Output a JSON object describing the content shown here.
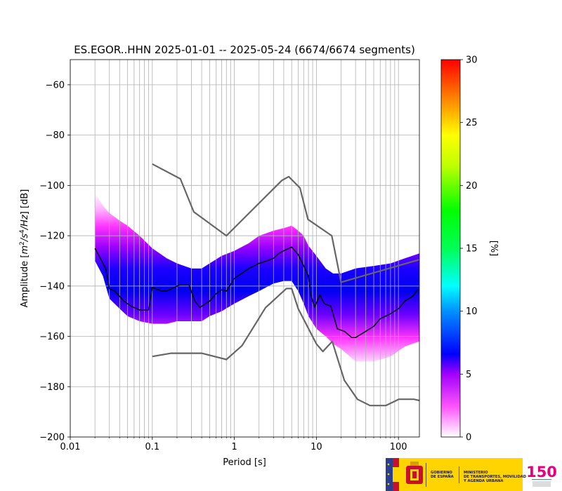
{
  "chart_data": {
    "type": "line",
    "title": "ES.EGOR..HHN   2025-01-01 -- 2025-05-24  (6674/6674 segments)",
    "xlabel": "Period [s]",
    "ylabel_parts": [
      "Amplitude [",
      "m",
      "2",
      "/",
      "s",
      "4",
      "/",
      "Hz",
      "] [dB]"
    ],
    "xscale": "log",
    "xlim": [
      0.01,
      180
    ],
    "ylim": [
      -200,
      -50
    ],
    "xticks": [
      0.01,
      0.1,
      1,
      10,
      100
    ],
    "xtick_labels": [
      "0.01",
      "0.1",
      "1",
      "10",
      "100"
    ],
    "yticks": [
      -200,
      -180,
      -160,
      -140,
      -120,
      -100,
      -80,
      -60
    ],
    "ytick_labels": [
      "−200",
      "−180",
      "−160",
      "−140",
      "−120",
      "−100",
      "−80",
      "−60"
    ],
    "grid": true,
    "colorbar": {
      "label": "[%]",
      "range": [
        0,
        30
      ],
      "ticks": [
        0,
        5,
        10,
        15,
        20,
        25,
        30
      ],
      "tick_labels": [
        "0",
        "5",
        "10",
        "15",
        "20",
        "25",
        "30"
      ],
      "colors": [
        "#ffffff",
        "#ff00ff",
        "#0000ff",
        "#00ffff",
        "#00ff00",
        "#ffff00",
        "#ff0000"
      ]
    },
    "series": [
      {
        "role": "noise-model-high",
        "color": "#666666",
        "points": [
          [
            0.1,
            -91.5
          ],
          [
            0.22,
            -97.4
          ],
          [
            0.32,
            -110.5
          ],
          [
            0.8,
            -120
          ],
          [
            3.8,
            -98
          ],
          [
            4.6,
            -96.5
          ],
          [
            6.3,
            -101
          ],
          [
            7.9,
            -113.5
          ],
          [
            15.4,
            -120
          ],
          [
            20,
            -138.5
          ],
          [
            180,
            -129.5
          ]
        ]
      },
      {
        "role": "noise-model-low",
        "color": "#666666",
        "points": [
          [
            0.1,
            -168
          ],
          [
            0.17,
            -166.7
          ],
          [
            0.4,
            -166.7
          ],
          [
            0.8,
            -169.2
          ],
          [
            1.24,
            -163.7
          ],
          [
            2.4,
            -148.6
          ],
          [
            4.3,
            -141
          ],
          [
            5.0,
            -141
          ],
          [
            6.0,
            -149
          ],
          [
            10,
            -163
          ],
          [
            12,
            -166
          ],
          [
            15.6,
            -162
          ],
          [
            21.9,
            -177.5
          ],
          [
            31.6,
            -185
          ],
          [
            45,
            -187.5
          ],
          [
            70,
            -187.5
          ],
          [
            101,
            -185
          ],
          [
            154,
            -185
          ],
          [
            180,
            -185.5
          ]
        ]
      },
      {
        "role": "mode",
        "color": "#000000",
        "points": [
          [
            0.02,
            -125
          ],
          [
            0.027,
            -133
          ],
          [
            0.03,
            -141
          ],
          [
            0.035,
            -142
          ],
          [
            0.045,
            -146
          ],
          [
            0.055,
            -148
          ],
          [
            0.07,
            -149.5
          ],
          [
            0.09,
            -149.5
          ],
          [
            0.1,
            -140.5
          ],
          [
            0.13,
            -142
          ],
          [
            0.15,
            -142
          ],
          [
            0.2,
            -140
          ],
          [
            0.22,
            -139.5
          ],
          [
            0.28,
            -139.5
          ],
          [
            0.33,
            -146
          ],
          [
            0.38,
            -148.5
          ],
          [
            0.5,
            -146
          ],
          [
            0.6,
            -143
          ],
          [
            0.7,
            -141.5
          ],
          [
            0.8,
            -142
          ],
          [
            1.0,
            -137
          ],
          [
            1.5,
            -133
          ],
          [
            2.0,
            -131
          ],
          [
            2.5,
            -130
          ],
          [
            3.0,
            -129
          ],
          [
            3.5,
            -127
          ],
          [
            4.0,
            -126
          ],
          [
            5.0,
            -124.5
          ],
          [
            6.0,
            -127.5
          ],
          [
            7.0,
            -132
          ],
          [
            8.0,
            -136
          ],
          [
            8.5,
            -143
          ],
          [
            9.5,
            -148.5
          ],
          [
            11,
            -143.5
          ],
          [
            12.5,
            -147
          ],
          [
            15,
            -148
          ],
          [
            18,
            -157
          ],
          [
            22,
            -158
          ],
          [
            27,
            -160.5
          ],
          [
            30,
            -160.5
          ],
          [
            40,
            -158
          ],
          [
            50,
            -156
          ],
          [
            60,
            -153
          ],
          [
            80,
            -151
          ],
          [
            100,
            -149
          ],
          [
            120,
            -146
          ],
          [
            150,
            -144
          ],
          [
            170,
            -141.5
          ],
          [
            180,
            -141.5
          ]
        ]
      }
    ],
    "histogram_band": {
      "period": [
        0.02,
        0.025,
        0.03,
        0.04,
        0.05,
        0.07,
        0.1,
        0.15,
        0.2,
        0.3,
        0.4,
        0.5,
        0.7,
        1.0,
        1.5,
        2.0,
        3.0,
        4.0,
        5.0,
        6.0,
        7.0,
        8.0,
        10,
        13,
        16,
        20,
        30,
        50,
        80,
        120,
        180
      ],
      "upper_db": [
        -103,
        -108,
        -111,
        -114,
        -116,
        -120,
        -125,
        -129,
        -131,
        -133,
        -133,
        -131,
        -128,
        -126,
        -123,
        -120,
        -118,
        -117,
        -116,
        -118,
        -120,
        -124,
        -128,
        -133,
        -135,
        -135,
        -133,
        -132,
        -131,
        -129,
        -127
      ],
      "lower_db": [
        -130,
        -136,
        -145,
        -149,
        -152,
        -154,
        -155,
        -155,
        -154,
        -154,
        -154,
        -152,
        -150,
        -147,
        -144,
        -142,
        -139,
        -138,
        -138,
        -142,
        -147,
        -152,
        -157,
        -160,
        -163,
        -165,
        -170,
        -170,
        -168,
        -164,
        -162
      ]
    }
  },
  "footer": {
    "gov_line1": "GOBIERNO",
    "gov_line2": "DE ESPAÑA",
    "ministry_line1": "MINISTERIO",
    "ministry_line2": "DE TRANSPORTES, MOVILIDAD",
    "ministry_line3": "Y AGENDA URBANA",
    "anniversary_mark": "150"
  }
}
